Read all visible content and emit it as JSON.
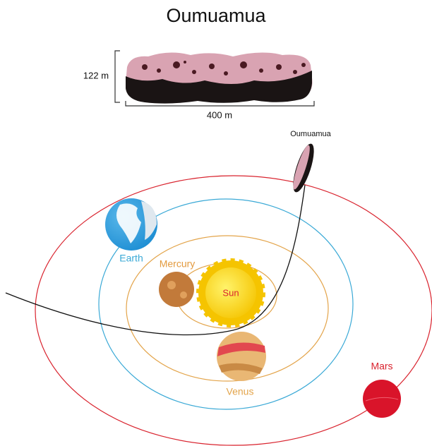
{
  "header": {
    "title": "Oumuamua"
  },
  "dimensions": {
    "height": "122 m",
    "length": "400 m"
  },
  "object": {
    "label": "Oumuamua"
  },
  "bodies": {
    "sun": "Sun",
    "mercury": "Mercury",
    "venus": "Venus",
    "earth": "Earth",
    "mars": "Mars"
  }
}
